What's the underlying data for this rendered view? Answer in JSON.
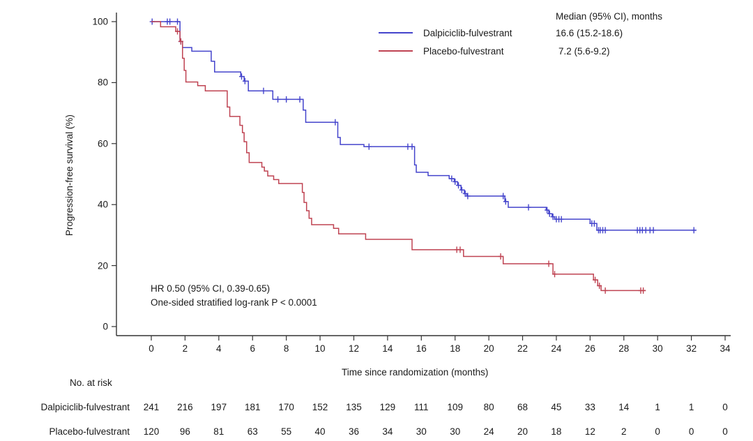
{
  "chart_data": {
    "type": "line",
    "subtype": "kaplan-meier-step",
    "title": "",
    "xlabel": "Time since randomization (months)",
    "ylabel": "Progression-free survival (%)",
    "xlim": [
      0,
      34
    ],
    "ylim": [
      0,
      100
    ],
    "xticks": [
      0,
      2,
      4,
      6,
      8,
      10,
      12,
      14,
      16,
      18,
      20,
      22,
      24,
      26,
      28,
      30,
      32,
      34
    ],
    "yticks": [
      0,
      20,
      40,
      60,
      80,
      100
    ],
    "grid": false,
    "annotation": {
      "line1": "HR 0.50 (95% CI, 0.39-0.65)",
      "line2": "One-sided stratified log-rank P < 0.0001"
    },
    "legend": {
      "position": "top-right-inside",
      "header": "Median (95% CI), months",
      "entries": [
        {
          "label": "Dalpiciclib-fulvestrant",
          "median": "16.6 (15.2-18.6)",
          "color": "#4444cc"
        },
        {
          "label": "Placebo-fulvestrant",
          "median": "7.2 (5.6-9.2)",
          "color": "#bf4352"
        }
      ]
    },
    "series": [
      {
        "name": "Dalpiciclib-fulvestrant",
        "color": "#4444cc",
        "end_time": 32.3,
        "steps": [
          [
            0,
            100
          ],
          [
            1.7,
            93.5
          ],
          [
            1.85,
            91.5
          ],
          [
            2.4,
            90.3
          ],
          [
            3.55,
            87
          ],
          [
            3.75,
            83.5
          ],
          [
            5.3,
            82
          ],
          [
            5.5,
            80.5
          ],
          [
            5.75,
            77.3
          ],
          [
            7.2,
            74.5
          ],
          [
            9.0,
            71
          ],
          [
            9.15,
            67
          ],
          [
            11.05,
            62
          ],
          [
            11.2,
            59.7
          ],
          [
            12.6,
            59
          ],
          [
            15.6,
            53
          ],
          [
            15.7,
            50.6
          ],
          [
            16.4,
            49.5
          ],
          [
            17.65,
            48.5
          ],
          [
            17.95,
            47.5
          ],
          [
            18.15,
            46.3
          ],
          [
            18.35,
            44.8
          ],
          [
            18.55,
            43.6
          ],
          [
            18.7,
            42.8
          ],
          [
            20.95,
            41
          ],
          [
            21.15,
            39.1
          ],
          [
            23.4,
            38.2
          ],
          [
            23.55,
            37
          ],
          [
            23.75,
            36
          ],
          [
            23.9,
            35.2
          ],
          [
            26.0,
            33.8
          ],
          [
            26.4,
            31.6
          ]
        ],
        "censors": [
          [
            0.05,
            100
          ],
          [
            0.95,
            100
          ],
          [
            1.1,
            100
          ],
          [
            1.55,
            100
          ],
          [
            1.75,
            93.5
          ],
          [
            5.35,
            82
          ],
          [
            5.55,
            80.5
          ],
          [
            6.65,
            77.3
          ],
          [
            7.5,
            74.5
          ],
          [
            8.0,
            74.5
          ],
          [
            8.8,
            74.5
          ],
          [
            10.9,
            67
          ],
          [
            12.9,
            59
          ],
          [
            15.2,
            59
          ],
          [
            15.45,
            59
          ],
          [
            17.8,
            48.5
          ],
          [
            18.0,
            47.5
          ],
          [
            18.2,
            46.3
          ],
          [
            18.4,
            44.8
          ],
          [
            18.6,
            43.6
          ],
          [
            18.75,
            42.8
          ],
          [
            20.85,
            42.8
          ],
          [
            21.0,
            41
          ],
          [
            22.35,
            39.1
          ],
          [
            23.45,
            38.2
          ],
          [
            23.6,
            37
          ],
          [
            23.8,
            36
          ],
          [
            24.0,
            35.2
          ],
          [
            24.15,
            35.2
          ],
          [
            24.3,
            35.2
          ],
          [
            26.1,
            33.8
          ],
          [
            26.25,
            33.8
          ],
          [
            26.5,
            31.6
          ],
          [
            26.6,
            31.6
          ],
          [
            26.75,
            31.6
          ],
          [
            26.9,
            31.6
          ],
          [
            28.8,
            31.6
          ],
          [
            28.95,
            31.6
          ],
          [
            29.1,
            31.6
          ],
          [
            29.3,
            31.6
          ],
          [
            29.55,
            31.6
          ],
          [
            29.75,
            31.6
          ],
          [
            32.15,
            31.6
          ]
        ]
      },
      {
        "name": "Placebo-fulvestrant",
        "color": "#bf4352",
        "end_time": 29.3,
        "steps": [
          [
            0,
            100
          ],
          [
            0.55,
            98.3
          ],
          [
            1.45,
            96.8
          ],
          [
            1.7,
            93.5
          ],
          [
            1.85,
            88
          ],
          [
            1.95,
            84
          ],
          [
            2.05,
            80.2
          ],
          [
            2.75,
            79
          ],
          [
            3.2,
            77.3
          ],
          [
            4.5,
            72
          ],
          [
            4.65,
            68.9
          ],
          [
            5.25,
            66
          ],
          [
            5.4,
            63.6
          ],
          [
            5.5,
            60.6
          ],
          [
            5.65,
            57
          ],
          [
            5.8,
            53.8
          ],
          [
            6.55,
            52.3
          ],
          [
            6.7,
            51
          ],
          [
            6.9,
            49.4
          ],
          [
            7.25,
            48.2
          ],
          [
            7.55,
            46.9
          ],
          [
            8.95,
            44
          ],
          [
            9.05,
            40.7
          ],
          [
            9.2,
            38
          ],
          [
            9.35,
            35.5
          ],
          [
            9.5,
            33.4
          ],
          [
            10.8,
            32.2
          ],
          [
            11.1,
            30.4
          ],
          [
            12.7,
            28.6
          ],
          [
            15.45,
            25.2
          ],
          [
            18.5,
            23.0
          ],
          [
            20.85,
            20.6
          ],
          [
            23.8,
            17.2
          ],
          [
            26.2,
            15.3
          ],
          [
            26.45,
            13.4
          ],
          [
            26.65,
            11.8
          ]
        ],
        "censors": [
          [
            1.55,
            96.8
          ],
          [
            1.75,
            93.5
          ],
          [
            18.1,
            25.2
          ],
          [
            18.3,
            25.2
          ],
          [
            20.7,
            23.0
          ],
          [
            23.55,
            20.6
          ],
          [
            23.9,
            17.2
          ],
          [
            26.3,
            15.3
          ],
          [
            26.55,
            13.4
          ],
          [
            26.9,
            11.8
          ],
          [
            29.0,
            11.8
          ],
          [
            29.15,
            11.8
          ]
        ]
      }
    ],
    "risk_table": {
      "title": "No. at risk",
      "times": [
        0,
        2,
        4,
        6,
        8,
        10,
        12,
        14,
        16,
        18,
        20,
        22,
        24,
        26,
        28,
        30,
        32,
        34
      ],
      "rows": [
        {
          "label": "Dalpiciclib-fulvestrant",
          "counts": [
            241,
            216,
            197,
            181,
            170,
            152,
            135,
            129,
            111,
            109,
            80,
            68,
            45,
            33,
            14,
            1,
            1,
            0
          ]
        },
        {
          "label": "Placebo-fulvestrant",
          "counts": [
            120,
            96,
            81,
            63,
            55,
            40,
            36,
            34,
            30,
            30,
            24,
            20,
            18,
            12,
            2,
            0,
            0,
            0
          ]
        }
      ]
    }
  }
}
